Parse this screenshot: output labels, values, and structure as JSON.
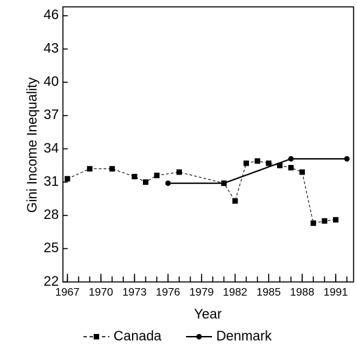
{
  "chart_data": {
    "type": "line",
    "x_label": "Year",
    "y_label": "Gini Income Inequality",
    "series": [
      {
        "name": "Canada",
        "color": "#000000",
        "marker": "square",
        "dash": true,
        "x": [
          1967,
          1969,
          1971,
          1973,
          1974,
          1975,
          1977,
          1981,
          1982,
          1983,
          1984,
          1985,
          1986,
          1987,
          1988,
          1989,
          1990,
          1991
        ],
        "values": [
          31.3,
          32.2,
          32.2,
          31.5,
          31.0,
          31.6,
          31.9,
          30.9,
          29.3,
          32.7,
          32.9,
          32.7,
          32.5,
          32.3,
          31.9,
          27.3,
          27.5,
          27.6
        ]
      },
      {
        "name": "Denmark",
        "color": "#000000",
        "marker": "circle",
        "dash": false,
        "x": [
          1976,
          1981,
          1987,
          1992
        ],
        "values": [
          30.9,
          30.9,
          33.1,
          33.1
        ]
      }
    ],
    "xlim": [
      1966.6,
      1992.6
    ],
    "xticks": [
      1967,
      1970,
      1973,
      1976,
      1979,
      1982,
      1985,
      1988,
      1991
    ],
    "xminorticks": [
      1967,
      1968,
      1969,
      1970,
      1971,
      1972,
      1973,
      1974,
      1975,
      1976,
      1977,
      1978,
      1979,
      1980,
      1981,
      1982,
      1983,
      1984,
      1985,
      1986,
      1987,
      1988,
      1989,
      1990,
      1991,
      1992
    ],
    "ylim": [
      22,
      46.8
    ],
    "yticks": [
      22,
      25,
      28,
      31,
      34,
      37,
      40,
      43,
      46
    ],
    "legend": "bottom"
  }
}
